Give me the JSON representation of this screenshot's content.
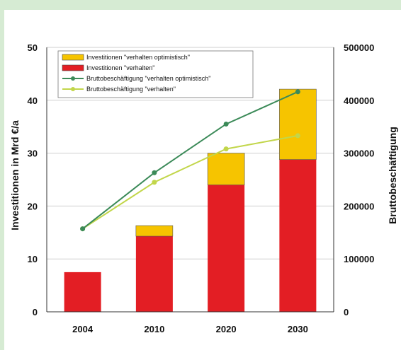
{
  "chart_data": {
    "type": "bar",
    "categories": [
      "2004",
      "2010",
      "2020",
      "2030"
    ],
    "series": [
      {
        "name": "Investitionen \"verhalten\"",
        "kind": "bar",
        "axis": "left",
        "color": "#e31e24",
        "values": [
          7.5,
          14.3,
          24,
          28.8
        ]
      },
      {
        "name": "Investitionen \"verhalten optimistisch\"",
        "kind": "bar-stack",
        "axis": "left",
        "color": "#f6c400",
        "values": [
          0,
          2,
          6,
          13.3
        ]
      },
      {
        "name": "Bruttobeschäftigung \"verhalten optimistisch\"",
        "kind": "line",
        "axis": "right",
        "color": "#3b8a58",
        "values": [
          157000,
          263000,
          355000,
          416000
        ]
      },
      {
        "name": "Bruttobeschäftigung \"verhalten\"",
        "kind": "line",
        "axis": "right",
        "color": "#c2d64a",
        "values": [
          157000,
          245000,
          308000,
          333000
        ]
      }
    ],
    "legend_order": [
      1,
      0,
      2,
      3
    ],
    "ylabel": "Investitionen in Mrd €/a",
    "y2label": "Bruttobeschäftigung",
    "ylim": [
      0,
      50
    ],
    "y2lim": [
      0,
      500000
    ],
    "yticks": [
      "0",
      "10",
      "20",
      "30",
      "40",
      "50"
    ],
    "y2ticks": [
      "0",
      "100000",
      "200000",
      "300000",
      "400000",
      "500000"
    ],
    "grid": true,
    "legend_position": "top-left"
  }
}
